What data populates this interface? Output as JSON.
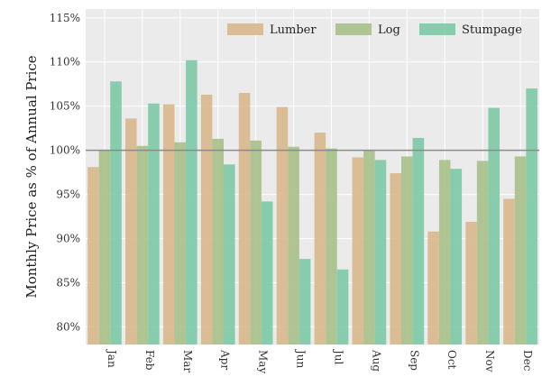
{
  "chart_data": {
    "type": "bar",
    "title": "",
    "xlabel": "",
    "ylabel": "Monthly Price as % of Annual Price",
    "ylim": [
      78,
      116
    ],
    "yticks": [
      80,
      85,
      90,
      95,
      100,
      105,
      110,
      115
    ],
    "ytick_labels": [
      "80%",
      "85%",
      "90%",
      "95%",
      "100%",
      "105%",
      "110%",
      "115%"
    ],
    "categories": [
      "Jan",
      "Feb",
      "Mar",
      "Apr",
      "May",
      "Jun",
      "Jul",
      "Aug",
      "Sep",
      "Oct",
      "Nov",
      "Dec"
    ],
    "series": [
      {
        "name": "Lumber",
        "color": "#d9b88c",
        "values": [
          98.1,
          103.6,
          105.2,
          106.3,
          106.5,
          104.9,
          102.0,
          99.2,
          97.4,
          90.8,
          91.9,
          94.5
        ]
      },
      {
        "name": "Log",
        "color": "#a9c08a",
        "values": [
          100.0,
          100.5,
          100.9,
          101.3,
          101.1,
          100.4,
          100.2,
          100.0,
          99.3,
          98.9,
          98.8,
          99.3
        ]
      },
      {
        "name": "Stumpage",
        "color": "#7ccaa6",
        "values": [
          107.8,
          105.3,
          110.2,
          98.4,
          94.2,
          87.7,
          86.5,
          98.9,
          101.4,
          97.9,
          104.8,
          107.0
        ]
      }
    ],
    "reference_line": 100,
    "grid": true,
    "legend_position": "top-right",
    "background": "#ebebeb",
    "reference_line_color": "#8a8a8a"
  }
}
